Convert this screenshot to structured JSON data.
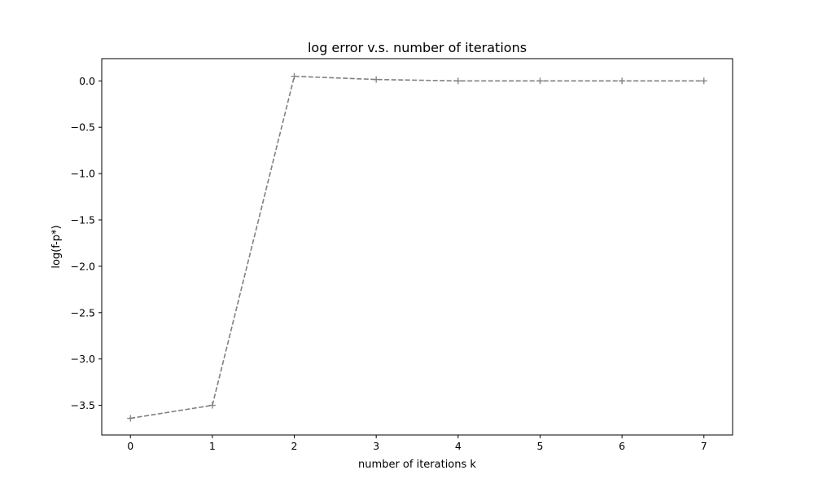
{
  "chart_data": {
    "type": "line",
    "title": "log error v.s. number of iterations",
    "xlabel": "number of iterations k",
    "ylabel": "log(f-p*)",
    "x": [
      0,
      1,
      2,
      3,
      4,
      5,
      6,
      7
    ],
    "series": [
      {
        "name": "log error",
        "values": [
          -3.64,
          -3.5,
          0.05,
          0.015,
          0.0,
          0.0,
          0.0,
          0.0
        ],
        "color": "#808080",
        "line_style": "dashed",
        "marker": "+"
      }
    ],
    "xlim": [
      -0.35,
      7.35
    ],
    "ylim": [
      -3.82,
      0.24
    ],
    "xticks": [
      0,
      1,
      2,
      3,
      4,
      5,
      6,
      7
    ],
    "xtick_labels": [
      "0",
      "1",
      "2",
      "3",
      "4",
      "5",
      "6",
      "7"
    ],
    "yticks": [
      0.0,
      -0.5,
      -1.0,
      -1.5,
      -2.0,
      -2.5,
      -3.0,
      -3.5
    ],
    "ytick_labels": [
      "0.0",
      "−0.5",
      "−1.0",
      "−1.5",
      "−2.0",
      "−2.5",
      "−3.0",
      "−3.5"
    ],
    "grid": false,
    "legend": "none"
  }
}
